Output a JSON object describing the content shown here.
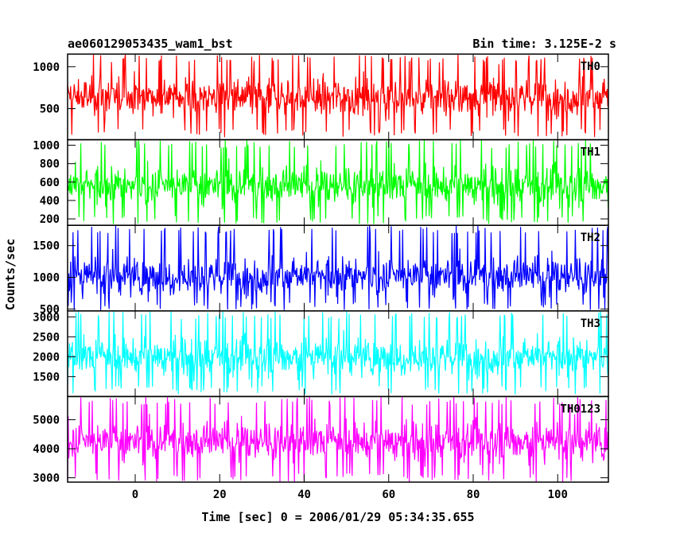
{
  "chart_data": {
    "type": "line",
    "title": "ae060129053435_wam1_bst",
    "subtitle": "Bin time: 3.125E-2 s",
    "xlabel": "Time [sec] 0 = 2006/01/29 05:34:35.655",
    "ylabel": "Counts/sec",
    "xlim": [
      -16,
      112
    ],
    "xticks": [
      0,
      20,
      40,
      60,
      80,
      100
    ],
    "xtick_labels": [
      "0",
      "20",
      "40",
      "60",
      "80",
      "100"
    ],
    "panels": [
      {
        "name": "TH0",
        "color": "#ff0000",
        "ylim": [
          130,
          1150
        ],
        "yticks": [
          500,
          1000
        ],
        "ytick_labels": [
          "500",
          "1000"
        ],
        "mean": 640,
        "low": 160,
        "high": 1150
      },
      {
        "name": "TH1",
        "color": "#00ff00",
        "ylim": [
          130,
          1060
        ],
        "yticks": [
          200,
          400,
          600,
          800,
          1000
        ],
        "ytick_labels": [
          "200",
          "400",
          "600",
          "800",
          "1000"
        ],
        "mean": 560,
        "low": 140,
        "high": 1060
      },
      {
        "name": "TH2",
        "color": "#0000ff",
        "ylim": [
          470,
          1820
        ],
        "yticks": [
          500,
          1000,
          1500
        ],
        "ytick_labels": [
          "500",
          "1000",
          "1500"
        ],
        "mean": 1020,
        "low": 480,
        "high": 1820
      },
      {
        "name": "TH3",
        "color": "#00ffff",
        "ylim": [
          1000,
          3150
        ],
        "yticks": [
          1500,
          2000,
          2500,
          3000
        ],
        "ytick_labels": [
          "1500",
          "2000",
          "2500",
          "3000"
        ],
        "mean": 2000,
        "low": 1050,
        "high": 3150
      },
      {
        "name": "TH0123",
        "color": "#ff00ff",
        "ylim": [
          2850,
          5800
        ],
        "yticks": [
          3000,
          4000,
          5000
        ],
        "ytick_labels": [
          "3000",
          "4000",
          "5000"
        ],
        "mean": 4250,
        "low": 2850,
        "high": 5800
      }
    ],
    "x_data_range": [
      -16,
      112
    ],
    "legend": "top-right of each panel",
    "grid": false
  }
}
